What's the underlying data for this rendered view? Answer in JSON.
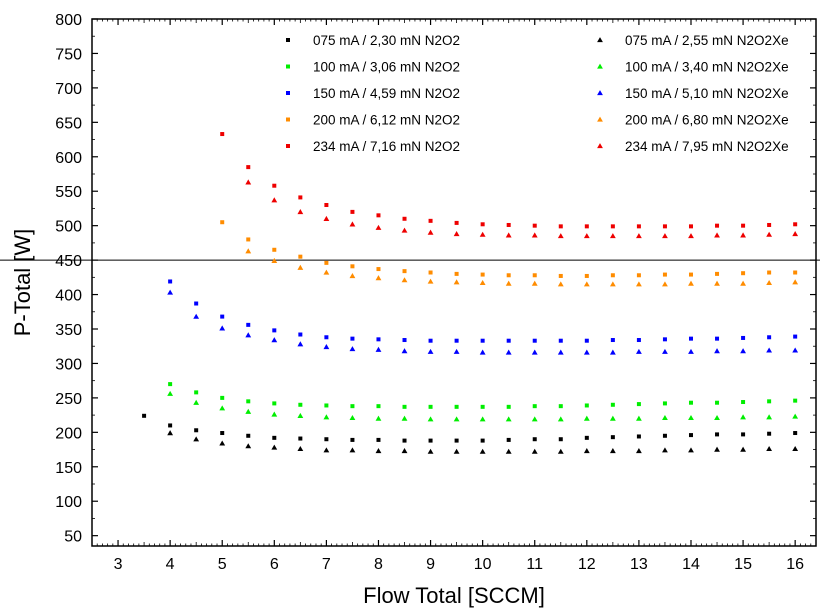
{
  "chart_data": {
    "type": "scatter",
    "xlabel": "Flow Total [SCCM]",
    "ylabel": "P-Total [W]",
    "xlim": [
      2.5,
      16.4
    ],
    "ylim": [
      35,
      800
    ],
    "xticks": [
      3,
      4,
      5,
      6,
      7,
      8,
      9,
      10,
      11,
      12,
      13,
      14,
      15,
      16
    ],
    "yticks": [
      50,
      100,
      150,
      200,
      250,
      300,
      350,
      400,
      450,
      500,
      550,
      600,
      650,
      700,
      750,
      800
    ],
    "reference_line_y": 450,
    "legend_position": "top",
    "grid": false,
    "series": [
      {
        "name": "075 mA / 2,30 mN N2O2",
        "marker": "square",
        "color": "#000000",
        "x": [
          3.5,
          4,
          4.5,
          5,
          5.5,
          6,
          6.5,
          7,
          7.5,
          8,
          8.5,
          9,
          9.5,
          10,
          10.5,
          11,
          11.5,
          12,
          12.5,
          13,
          13.5,
          14,
          14.5,
          15,
          15.5,
          16
        ],
        "y": [
          224,
          210,
          203,
          199,
          195,
          192,
          191,
          190,
          189,
          189,
          188,
          188,
          188,
          188,
          189,
          190,
          190,
          192,
          193,
          194,
          195,
          196,
          197,
          197,
          198,
          199
        ]
      },
      {
        "name": "100 mA / 3,06 mN N2O2",
        "marker": "square",
        "color": "#00ee00",
        "x": [
          4,
          4.5,
          5,
          5.5,
          6,
          6.5,
          7,
          7.5,
          8,
          8.5,
          9,
          9.5,
          10,
          10.5,
          11,
          11.5,
          12,
          12.5,
          13,
          13.5,
          14,
          14.5,
          15,
          15.5,
          16
        ],
        "y": [
          270,
          258,
          250,
          245,
          242,
          240,
          239,
          238,
          238,
          237,
          237,
          237,
          237,
          237,
          238,
          238,
          239,
          240,
          241,
          242,
          243,
          243,
          244,
          245,
          246
        ]
      },
      {
        "name": "150 mA / 4,59 mN N2O2",
        "marker": "square",
        "color": "#0000ff",
        "x": [
          4,
          4.5,
          5,
          5.5,
          6,
          6.5,
          7,
          7.5,
          8,
          8.5,
          9,
          9.5,
          10,
          10.5,
          11,
          11.5,
          12,
          12.5,
          13,
          13.5,
          14,
          14.5,
          15,
          15.5,
          16
        ],
        "y": [
          419,
          387,
          368,
          356,
          348,
          342,
          338,
          336,
          335,
          334,
          333,
          333,
          333,
          333,
          333,
          333,
          333,
          334,
          334,
          335,
          336,
          336,
          337,
          338,
          339
        ]
      },
      {
        "name": "200 mA / 6,12 mN N2O2",
        "marker": "square",
        "color": "#ff8c00",
        "x": [
          5,
          5.5,
          6,
          6.5,
          7,
          7.5,
          8,
          8.5,
          9,
          9.5,
          10,
          10.5,
          11,
          11.5,
          12,
          12.5,
          13,
          13.5,
          14,
          14.5,
          15,
          15.5,
          16
        ],
        "y": [
          505,
          480,
          465,
          455,
          446,
          441,
          437,
          434,
          432,
          430,
          429,
          428,
          428,
          427,
          427,
          428,
          428,
          429,
          429,
          430,
          431,
          432,
          432
        ]
      },
      {
        "name": "234 mA / 7,16 mN N2O2",
        "marker": "square",
        "color": "#ee0000",
        "x": [
          5,
          5.5,
          6,
          6.5,
          7,
          7.5,
          8,
          8.5,
          9,
          9.5,
          10,
          10.5,
          11,
          11.5,
          12,
          12.5,
          13,
          13.5,
          14,
          14.5,
          15,
          15.5,
          16
        ],
        "y": [
          633,
          585,
          558,
          541,
          530,
          520,
          515,
          510,
          507,
          504,
          502,
          501,
          500,
          499,
          499,
          499,
          499,
          499,
          499,
          500,
          500,
          501,
          502
        ]
      },
      {
        "name": "075 mA / 2,55 mN  N2O2Xe",
        "marker": "triangle",
        "color": "#000000",
        "x": [
          4,
          4.5,
          5,
          5.5,
          6,
          6.5,
          7,
          7.5,
          8,
          8.5,
          9,
          9.5,
          10,
          10.5,
          11,
          11.5,
          12,
          12.5,
          13,
          13.5,
          14,
          14.5,
          15,
          15.5,
          16
        ],
        "y": [
          199,
          190,
          184,
          180,
          178,
          176,
          174,
          174,
          173,
          173,
          172,
          172,
          172,
          172,
          172,
          172,
          173,
          173,
          173,
          174,
          174,
          175,
          175,
          176,
          176
        ]
      },
      {
        "name": "100 mA / 3,40 mN  N2O2Xe",
        "marker": "triangle",
        "color": "#00ee00",
        "x": [
          4,
          4.5,
          5,
          5.5,
          6,
          6.5,
          7,
          7.5,
          8,
          8.5,
          9,
          9.5,
          10,
          10.5,
          11,
          11.5,
          12,
          12.5,
          13,
          13.5,
          14,
          14.5,
          15,
          15.5,
          16
        ],
        "y": [
          256,
          243,
          235,
          230,
          226,
          224,
          222,
          221,
          220,
          220,
          219,
          219,
          219,
          219,
          219,
          219,
          220,
          220,
          220,
          221,
          221,
          221,
          222,
          222,
          223
        ]
      },
      {
        "name": "150 mA / 5,10 mN  N2O2Xe",
        "marker": "triangle",
        "color": "#0000ff",
        "x": [
          4,
          4.5,
          5,
          5.5,
          6,
          6.5,
          7,
          7.5,
          8,
          8.5,
          9,
          9.5,
          10,
          10.5,
          11,
          11.5,
          12,
          12.5,
          13,
          13.5,
          14,
          14.5,
          15,
          15.5,
          16
        ],
        "y": [
          403,
          368,
          351,
          341,
          334,
          328,
          324,
          321,
          320,
          318,
          317,
          317,
          316,
          316,
          316,
          316,
          316,
          316,
          317,
          317,
          317,
          318,
          318,
          319,
          319
        ]
      },
      {
        "name": "200 mA / 6,80 mN  N2O2Xe",
        "marker": "triangle",
        "color": "#ff8c00",
        "x": [
          5.5,
          6,
          6.5,
          7,
          7.5,
          8,
          8.5,
          9,
          9.5,
          10,
          10.5,
          11,
          11.5,
          12,
          12.5,
          13,
          13.5,
          14,
          14.5,
          15,
          15.5,
          16
        ],
        "y": [
          463,
          449,
          439,
          432,
          427,
          424,
          421,
          419,
          418,
          417,
          416,
          416,
          415,
          415,
          415,
          415,
          415,
          416,
          416,
          416,
          417,
          418
        ]
      },
      {
        "name": "234 mA / 7,95 mN  N2O2Xe",
        "marker": "triangle",
        "color": "#ee0000",
        "x": [
          5.5,
          6,
          6.5,
          7,
          7.5,
          8,
          8.5,
          9,
          9.5,
          10,
          10.5,
          11,
          11.5,
          12,
          12.5,
          13,
          13.5,
          14,
          14.5,
          15,
          15.5,
          16
        ],
        "y": [
          563,
          537,
          520,
          510,
          502,
          497,
          493,
          490,
          488,
          487,
          486,
          486,
          485,
          485,
          485,
          485,
          485,
          485,
          486,
          486,
          487,
          488
        ]
      }
    ]
  }
}
